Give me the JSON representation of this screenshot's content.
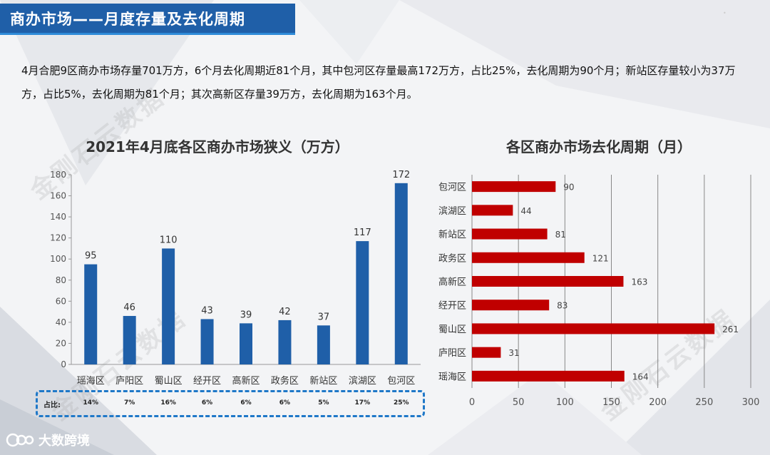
{
  "header": {
    "title": "商办市场——月度存量及去化周期"
  },
  "summary": "4月合肥9区商办市场存量701万方，6个月去化周期近81个月，其中包河区存量最高172万方，占比25%，去化周期为90个月；新站区存量较小为37万方，占比5%，去化周期为81个月；其次高新区存量39万方，去化周期为163个月。",
  "watermark": "金刚石云数据",
  "logo": {
    "text": "大数跨境"
  },
  "colors": {
    "bar_blue": "#1f5fa8",
    "bar_red": "#c00000",
    "title_bg": "#1f5fa8",
    "dashed_border": "#1f78c8"
  },
  "share_row": {
    "label": "占比:",
    "values": [
      "14%",
      "7%",
      "16%",
      "6%",
      "6%",
      "6%",
      "5%",
      "17%",
      "25%"
    ]
  },
  "chart_data": [
    {
      "type": "bar",
      "title": "2021年4月底各区商办市场狭义（万方）",
      "categories": [
        "瑶海区",
        "庐阳区",
        "蜀山区",
        "经开区",
        "高新区",
        "政务区",
        "新站区",
        "滨湖区",
        "包河区"
      ],
      "values": [
        95,
        46,
        110,
        43,
        39,
        42,
        37,
        117,
        172
      ],
      "ylim": [
        0,
        180
      ],
      "yticks": [
        0,
        20,
        40,
        60,
        80,
        100,
        120,
        140,
        160,
        180
      ],
      "grid": false,
      "data_labels": true
    },
    {
      "type": "bar",
      "orientation": "horizontal",
      "title": "各区商办市场去化周期（月）",
      "categories": [
        "包河区",
        "滨湖区",
        "新站区",
        "政务区",
        "高新区",
        "经开区",
        "蜀山区",
        "庐阳区",
        "瑶海区"
      ],
      "values": [
        90,
        44,
        81,
        121,
        163,
        83,
        261,
        31,
        164
      ],
      "xlim": [
        0,
        300
      ],
      "xticks": [
        0,
        50,
        100,
        150,
        200,
        250,
        300
      ],
      "grid": true,
      "data_labels": true
    }
  ]
}
